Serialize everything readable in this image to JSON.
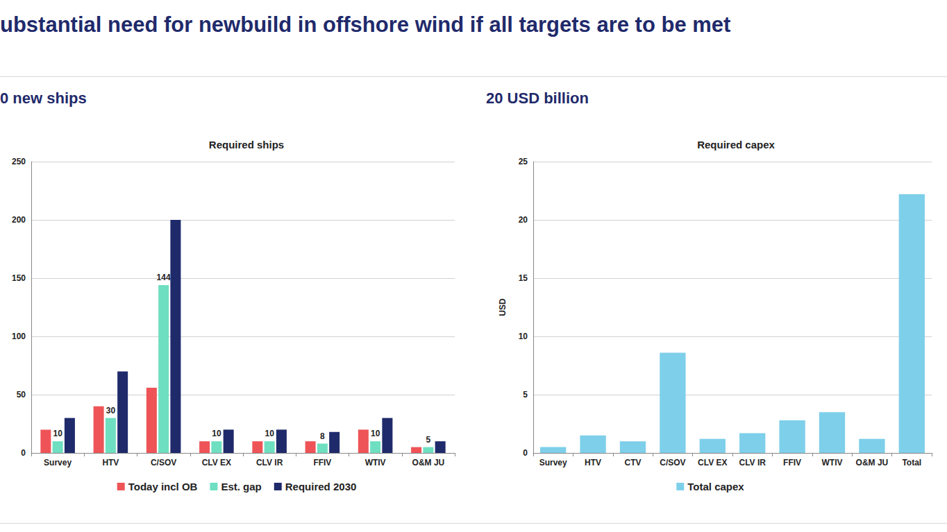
{
  "header": {
    "title": "ubstantial need for newbuild in offshore wind if all targets are to be met"
  },
  "chart_data": [
    {
      "type": "bar",
      "subtitle": "0 new ships",
      "title": "Required ships",
      "categories": [
        "Survey",
        "HTV",
        "C/SOV",
        "CLV EX",
        "CLV IR",
        "FFIV",
        "WTIV",
        "O&M JU"
      ],
      "series": [
        {
          "name": "Today incl OB",
          "color": "#EE5457",
          "values": [
            20,
            40,
            56,
            10,
            10,
            10,
            20,
            5
          ]
        },
        {
          "name": "Est. gap",
          "color": "#6EDFC0",
          "values": [
            10,
            30,
            144,
            10,
            10,
            8,
            10,
            5
          ],
          "data_labels": true
        },
        {
          "name": "Required 2030",
          "color": "#1F2A6B",
          "values": [
            30,
            70,
            200,
            20,
            20,
            18,
            30,
            10
          ]
        }
      ],
      "ylim": [
        0,
        250
      ],
      "yticks": [
        0,
        50,
        100,
        150,
        200,
        250
      ],
      "grid": true,
      "legend": "bottom"
    },
    {
      "type": "bar",
      "subtitle": "20 USD billion",
      "title": "Required capex",
      "ylabel": "USD",
      "categories": [
        "Survey",
        "HTV",
        "CTV",
        "C/SOV",
        "CLV EX",
        "CLV IR",
        "FFIV",
        "WTIV",
        "O&M JU",
        "Total"
      ],
      "series": [
        {
          "name": "Total capex",
          "color": "#7ECFEA",
          "values": [
            0.5,
            1.5,
            1.0,
            8.6,
            1.2,
            1.7,
            2.8,
            3.5,
            1.2,
            22.2
          ]
        }
      ],
      "ylim": [
        0,
        25
      ],
      "yticks": [
        0,
        5,
        10,
        15,
        20,
        25
      ],
      "grid": true,
      "legend": "bottom"
    }
  ]
}
